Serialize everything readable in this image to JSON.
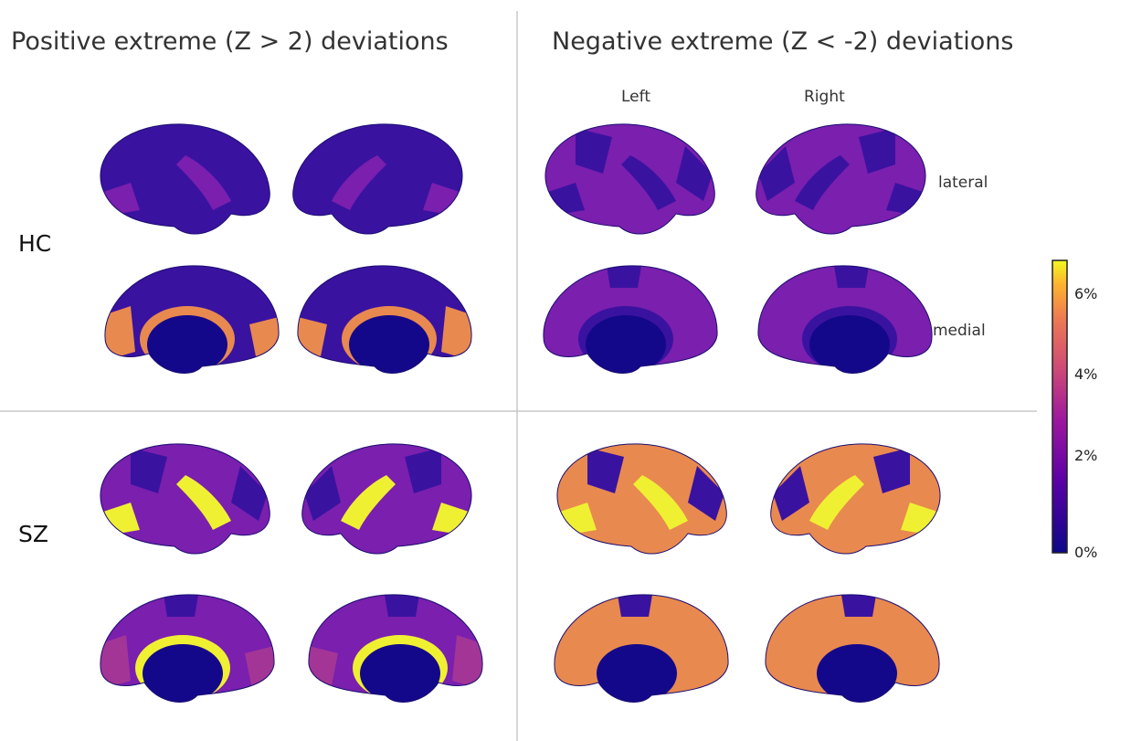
{
  "titles": {
    "positive": "Positive extreme (Z > 2) deviations",
    "negative": "Negative extreme (Z < -2) deviations"
  },
  "rows": {
    "hc": "HC",
    "sz": "SZ"
  },
  "hemispheres": {
    "left": "Left",
    "right": "Right"
  },
  "views": {
    "lateral": "lateral",
    "medial": "medial"
  },
  "colorbar": {
    "ticks": [
      "6%",
      "4%",
      "2%",
      "0%"
    ],
    "colors": [
      "#0d0887",
      "#6a00a8",
      "#b12a90",
      "#e16462",
      "#fca636",
      "#f0f921"
    ]
  },
  "palette": {
    "background": "#1a0f8a",
    "low": "#3a12a0",
    "mid": "#7a1fae",
    "midhigh": "#a33596",
    "orange": "#e8894f",
    "yellow": "#f0f032"
  }
}
